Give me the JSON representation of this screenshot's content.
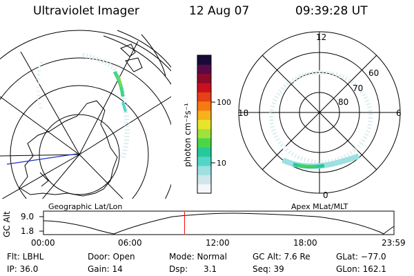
{
  "header": {
    "title": "Ultraviolet Imager",
    "date": "12 Aug 07",
    "time": "09:39:28 UT"
  },
  "colorbar": {
    "unit_label": "photon cm⁻²s⁻¹",
    "ticks": [
      "100",
      "10"
    ],
    "colors": [
      "#f4f6f8",
      "#cfe6ea",
      "#9edfe0",
      "#52d6c7",
      "#25c99a",
      "#4bd64a",
      "#9ee23a",
      "#e6e52a",
      "#f6b11c",
      "#f57a12",
      "#e64016",
      "#c8101e",
      "#8e0a2a",
      "#5a0a46",
      "#1a0a3a"
    ]
  },
  "left_map": {
    "label": "Geographic Lat/Lon"
  },
  "right_map": {
    "label": "Apex MLat/MLT",
    "mlt_labels": [
      "12",
      "18",
      "6",
      "0"
    ],
    "lat_labels": [
      "60",
      "70",
      "80"
    ]
  },
  "altitude_plot": {
    "ylabel": "GC Alt",
    "yticks": [
      "9.0",
      "1.8"
    ],
    "xticks": [
      "00:00",
      "06:00",
      "12:00",
      "18:00",
      "23:59"
    ],
    "current_time_marker_hours": 9.66
  },
  "status": {
    "flt": "Flt: LBHL",
    "ip": "IP: 36.0",
    "door": "Door: Open",
    "gain": "Gain: 14",
    "mode": "Mode: Normal",
    "dsp": "Dsp:      3.1",
    "gc_alt": "GC Alt: 7.6 Re",
    "seq": "Seq: 39",
    "glat": "GLat: −77.0",
    "glon": "GLon: 162.1"
  }
}
